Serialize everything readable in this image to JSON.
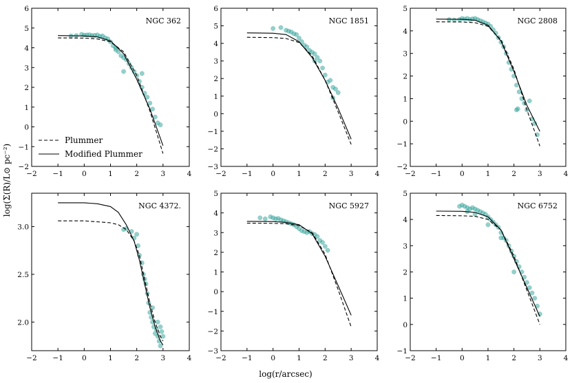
{
  "figure": {
    "xlabel": "log(r/arcsec)",
    "ylabel": "log(Σ(R)/L⊙ pc⁻²)",
    "legend": {
      "entries": [
        "Plummer",
        "Modified Plummer"
      ],
      "placement": "bottom-left",
      "panel": 0
    }
  },
  "chart_data": [
    {
      "type": "scatter",
      "title": "NGC 362",
      "xlim": [
        -2,
        4
      ],
      "ylim": [
        -2,
        6
      ],
      "xticks": [
        -2,
        -1,
        0,
        1,
        2,
        3,
        4
      ],
      "yticks": [
        -2,
        -1,
        0,
        1,
        2,
        3,
        4,
        5,
        6
      ],
      "series": [
        {
          "name": "Plummer",
          "x": [
            -1,
            0,
            0.5,
            1,
            1.5,
            2,
            2.5,
            3
          ],
          "y": [
            4.5,
            4.49,
            4.45,
            4.3,
            3.8,
            2.6,
            0.8,
            -1.35
          ]
        },
        {
          "name": "Modified Plummer",
          "x": [
            -1,
            0,
            0.5,
            1,
            1.5,
            2,
            2.5,
            3
          ],
          "y": [
            4.62,
            4.6,
            4.55,
            4.35,
            3.7,
            2.4,
            0.9,
            -0.95
          ]
        }
      ],
      "points": {
        "x": [
          -0.5,
          -0.3,
          -0.1,
          0.0,
          0.1,
          0.2,
          0.3,
          0.4,
          0.5,
          0.6,
          0.7,
          0.8,
          0.9,
          1.0,
          1.1,
          1.2,
          1.3,
          1.4,
          1.5,
          1.6,
          1.7,
          1.8,
          1.9,
          2.0,
          2.1,
          2.2,
          2.3,
          2.4,
          2.5,
          2.6,
          2.7,
          2.8,
          2.9,
          1.2,
          1.5,
          2.2
        ],
        "y": [
          4.6,
          4.62,
          4.68,
          4.64,
          4.65,
          4.66,
          4.62,
          4.63,
          4.65,
          4.58,
          4.6,
          4.5,
          4.45,
          4.3,
          4.1,
          4.0,
          3.8,
          3.6,
          3.5,
          3.4,
          3.2,
          3.0,
          2.8,
          2.6,
          2.3,
          2.0,
          1.7,
          1.5,
          1.2,
          0.9,
          0.5,
          0.2,
          0.1,
          3.9,
          2.8,
          2.7
        ]
      }
    },
    {
      "type": "scatter",
      "title": "NGC 1851",
      "xlim": [
        -2,
        4
      ],
      "ylim": [
        -3,
        6
      ],
      "xticks": [
        -2,
        -1,
        0,
        1,
        2,
        3,
        4
      ],
      "yticks": [
        -3,
        -2,
        -1,
        0,
        1,
        2,
        3,
        4,
        5,
        6
      ],
      "series": [
        {
          "name": "Plummer",
          "x": [
            -1,
            0,
            0.5,
            1,
            1.5,
            2,
            2.5,
            3
          ],
          "y": [
            4.35,
            4.33,
            4.28,
            4.05,
            3.3,
            1.9,
            0.1,
            -1.75
          ]
        },
        {
          "name": "Modified Plummer",
          "x": [
            -1,
            0,
            0.5,
            1,
            1.5,
            2,
            2.5,
            3
          ],
          "y": [
            4.6,
            4.58,
            4.5,
            4.1,
            3.2,
            1.9,
            0.3,
            -1.45
          ]
        }
      ],
      "points": {
        "x": [
          0.0,
          0.3,
          0.5,
          0.6,
          0.7,
          0.8,
          0.9,
          1.0,
          1.1,
          1.2,
          1.3,
          1.4,
          1.5,
          1.6,
          1.7,
          1.8,
          1.9,
          2.0,
          2.1,
          2.2,
          2.3,
          2.4,
          2.5,
          1.6,
          2.3
        ],
        "y": [
          4.85,
          4.9,
          4.75,
          4.7,
          4.65,
          4.55,
          4.5,
          4.3,
          4.1,
          3.9,
          3.8,
          3.6,
          3.5,
          3.4,
          3.2,
          3.0,
          2.6,
          2.2,
          1.8,
          1.9,
          1.5,
          1.4,
          1.2,
          3.0,
          0.9
        ]
      }
    },
    {
      "type": "scatter",
      "title": "NGC 2808",
      "xlim": [
        -2,
        4
      ],
      "ylim": [
        -2,
        5
      ],
      "xticks": [
        -2,
        -1,
        0,
        1,
        2,
        3,
        4
      ],
      "yticks": [
        -2,
        -1,
        0,
        1,
        2,
        3,
        4,
        5
      ],
      "series": [
        {
          "name": "Plummer",
          "x": [
            -1,
            0,
            0.5,
            1,
            1.5,
            2,
            2.5,
            3
          ],
          "y": [
            4.4,
            4.39,
            4.36,
            4.2,
            3.6,
            2.3,
            0.5,
            -1.1
          ]
        },
        {
          "name": "Modified Plummer",
          "x": [
            -1,
            0,
            0.5,
            1,
            1.5,
            2,
            2.5,
            3
          ],
          "y": [
            4.52,
            4.51,
            4.47,
            4.25,
            3.55,
            2.2,
            0.7,
            -0.45
          ]
        }
      ],
      "points": {
        "x": [
          -0.5,
          -0.3,
          -0.1,
          0.0,
          0.1,
          0.2,
          0.3,
          0.4,
          0.5,
          0.6,
          0.7,
          0.8,
          0.9,
          1.0,
          1.1,
          1.2,
          1.3,
          1.4,
          1.5,
          1.6,
          1.7,
          1.8,
          1.9,
          2.0,
          2.1,
          2.2,
          2.3,
          2.4,
          2.5,
          2.6,
          2.7,
          2.8,
          2.9,
          2.1,
          2.15
        ],
        "y": [
          4.5,
          4.48,
          4.5,
          4.55,
          4.52,
          4.55,
          4.5,
          4.53,
          4.55,
          4.5,
          4.45,
          4.4,
          4.35,
          4.3,
          4.2,
          4.05,
          3.9,
          3.7,
          3.5,
          3.3,
          3.0,
          2.6,
          2.3,
          2.0,
          1.6,
          1.3,
          1.0,
          0.8,
          0.5,
          0.9,
          0.1,
          -0.1,
          -0.6,
          0.5,
          0.55
        ]
      }
    },
    {
      "type": "scatter",
      "title": "NGC 4372.",
      "xlim": [
        -2,
        4
      ],
      "ylim": [
        1.7,
        3.35
      ],
      "xticks": [
        -2,
        -1,
        0,
        1,
        2,
        3,
        4
      ],
      "yticks": [
        2.0,
        2.5,
        3.0
      ],
      "ytickLabels": [
        "2.0",
        "2.5",
        "3.0"
      ],
      "series": [
        {
          "name": "Plummer",
          "x": [
            -1,
            0,
            0.5,
            1,
            1.3,
            1.6,
            1.9,
            2.1,
            2.3,
            2.5,
            2.7,
            2.9,
            3.0
          ],
          "y": [
            3.06,
            3.06,
            3.05,
            3.04,
            3.02,
            2.97,
            2.85,
            2.7,
            2.45,
            2.2,
            2.0,
            1.85,
            1.8
          ]
        },
        {
          "name": "Modified Plummer",
          "x": [
            -1,
            0,
            0.5,
            1,
            1.3,
            1.6,
            1.9,
            2.1,
            2.3,
            2.5,
            2.7,
            2.9,
            3.0
          ],
          "y": [
            3.25,
            3.25,
            3.24,
            3.21,
            3.15,
            3.02,
            2.85,
            2.65,
            2.4,
            2.15,
            1.95,
            1.8,
            1.76
          ]
        }
      ],
      "points": {
        "x": [
          1.5,
          1.6,
          1.8,
          1.9,
          2.0,
          2.05,
          2.1,
          2.2,
          2.25,
          2.3,
          2.35,
          2.4,
          2.45,
          2.5,
          2.55,
          2.6,
          2.65,
          2.7,
          2.75,
          2.8,
          2.85,
          2.9,
          2.95,
          3.0,
          2.6,
          2.8,
          2.9
        ],
        "y": [
          2.97,
          2.98,
          2.95,
          2.88,
          2.92,
          2.8,
          2.7,
          2.62,
          2.5,
          2.45,
          2.4,
          2.3,
          2.2,
          2.1,
          2.05,
          2.0,
          1.95,
          1.88,
          1.92,
          1.85,
          1.8,
          1.75,
          1.9,
          1.85,
          2.15,
          2.0,
          1.95
        ]
      }
    },
    {
      "type": "scatter",
      "title": "NGC 5927",
      "xlim": [
        -2,
        4
      ],
      "ylim": [
        -3,
        5
      ],
      "xticks": [
        -2,
        -1,
        0,
        1,
        2,
        3,
        4
      ],
      "yticks": [
        -3,
        -2,
        -1,
        0,
        1,
        2,
        3,
        4,
        5
      ],
      "series": [
        {
          "name": "Plummer",
          "x": [
            -1,
            0,
            0.5,
            1,
            1.5,
            2,
            2.5,
            3
          ],
          "y": [
            3.48,
            3.47,
            3.45,
            3.35,
            3.0,
            1.9,
            0.1,
            -1.8
          ]
        },
        {
          "name": "Modified Plummer",
          "x": [
            -1,
            0,
            0.5,
            1,
            1.5,
            2,
            2.5,
            3
          ],
          "y": [
            3.57,
            3.56,
            3.52,
            3.4,
            2.95,
            1.8,
            0.3,
            -1.2
          ]
        }
      ],
      "points": {
        "x": [
          -0.5,
          -0.3,
          -0.1,
          0.0,
          0.1,
          0.2,
          0.3,
          0.4,
          0.5,
          0.6,
          0.7,
          0.8,
          0.9,
          1.0,
          1.1,
          1.2,
          1.3,
          1.4,
          1.5,
          1.6,
          1.7,
          1.8,
          1.9,
          2.0,
          2.1
        ],
        "y": [
          3.75,
          3.7,
          3.8,
          3.75,
          3.7,
          3.72,
          3.65,
          3.6,
          3.55,
          3.5,
          3.45,
          3.4,
          3.3,
          3.2,
          3.1,
          3.05,
          3.0,
          3.05,
          2.95,
          2.9,
          2.8,
          2.6,
          2.5,
          2.3,
          2.1
        ]
      }
    },
    {
      "type": "scatter",
      "title": "NGC 6752",
      "xlim": [
        -2,
        4
      ],
      "ylim": [
        -1,
        5
      ],
      "xticks": [
        -2,
        -1,
        0,
        1,
        2,
        3,
        4
      ],
      "yticks": [
        -1,
        0,
        1,
        2,
        3,
        4,
        5
      ],
      "series": [
        {
          "name": "Plummer",
          "x": [
            -1,
            0,
            0.5,
            1,
            1.5,
            2,
            2.5,
            3
          ],
          "y": [
            4.15,
            4.14,
            4.12,
            4.0,
            3.6,
            2.6,
            1.3,
            0.0
          ]
        },
        {
          "name": "Modified Plummer",
          "x": [
            -1,
            0,
            0.5,
            1,
            1.5,
            2,
            2.5,
            3
          ],
          "y": [
            4.32,
            4.31,
            4.27,
            4.1,
            3.6,
            2.5,
            1.4,
            0.3
          ]
        }
      ],
      "points": {
        "x": [
          -0.1,
          0.0,
          0.1,
          0.2,
          0.3,
          0.4,
          0.5,
          0.6,
          0.7,
          0.8,
          0.9,
          1.0,
          1.1,
          1.2,
          1.3,
          1.4,
          1.5,
          1.6,
          1.7,
          1.8,
          1.9,
          2.0,
          2.1,
          2.2,
          2.3,
          2.4,
          2.5,
          2.6,
          2.7,
          2.8,
          2.9,
          3.0,
          0.2,
          0.5,
          1.0,
          1.5,
          2.0
        ],
        "y": [
          4.5,
          4.55,
          4.5,
          4.45,
          4.4,
          4.45,
          4.4,
          4.35,
          4.3,
          4.25,
          4.2,
          4.1,
          4.0,
          3.9,
          3.8,
          3.7,
          3.5,
          3.3,
          3.2,
          3.0,
          2.8,
          2.6,
          2.4,
          2.2,
          2.0,
          1.8,
          1.6,
          1.4,
          1.2,
          1.0,
          0.7,
          0.4,
          4.3,
          4.2,
          3.8,
          3.3,
          2.0
        ]
      }
    }
  ]
}
